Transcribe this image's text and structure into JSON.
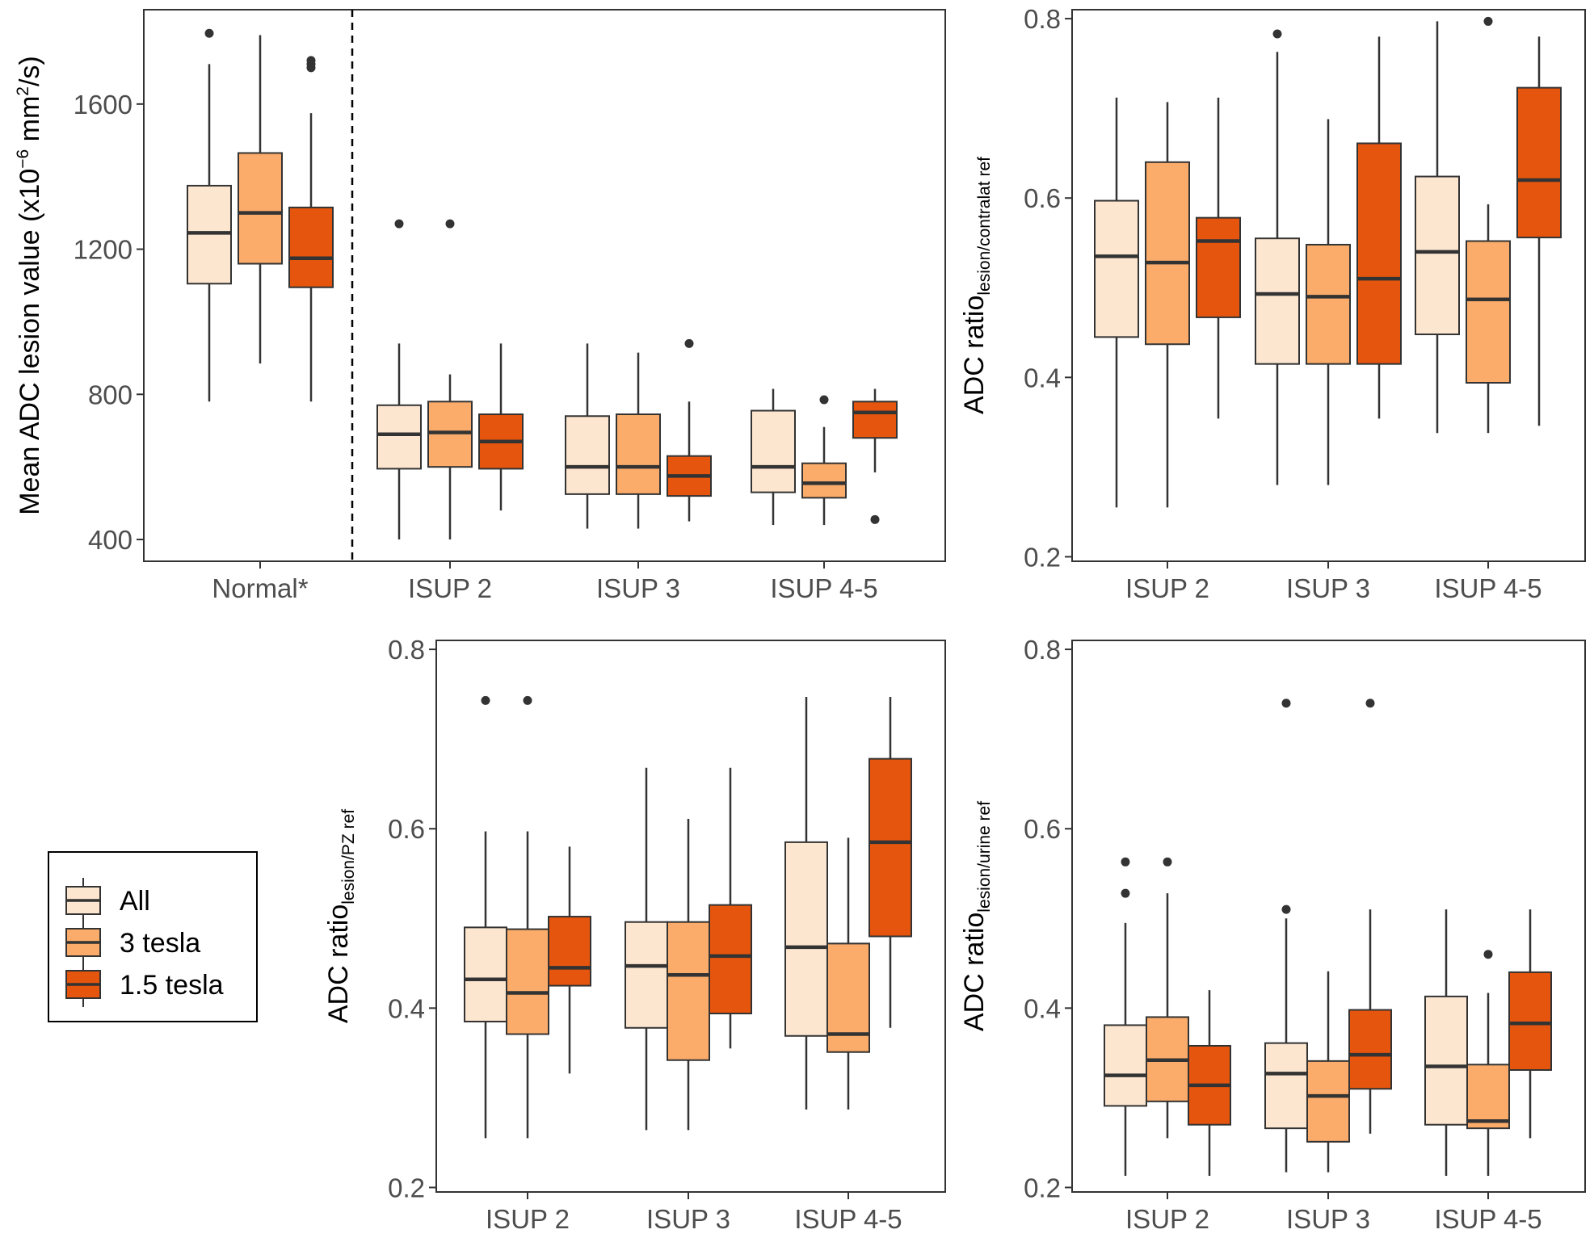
{
  "chart_data": [
    {
      "type": "boxplot",
      "id": "p1",
      "ylabel_main": "Mean ADC lesion value (x10",
      "ylabel_sup": "−6",
      "ylabel_mid": " mm",
      "ylabel_sup2": "2",
      "ylabel_end": "/s)",
      "ylim": [
        340,
        1860
      ],
      "yticks": [
        400,
        800,
        1200,
        1600
      ],
      "categories": [
        "Normal*",
        "ISUP 2",
        "ISUP 3",
        "ISUP 4-5"
      ],
      "series": [
        {
          "name": "All",
          "boxes": [
            {
              "min": 780,
              "q1": 1105,
              "median": 1245,
              "q3": 1375,
              "max": 1710,
              "outliers": [
                1795
              ]
            },
            {
              "min": 400,
              "q1": 595,
              "median": 690,
              "q3": 770,
              "max": 940,
              "outliers": [
                1270
              ]
            },
            {
              "min": 430,
              "q1": 525,
              "median": 600,
              "q3": 740,
              "max": 940,
              "outliers": []
            },
            {
              "min": 440,
              "q1": 530,
              "median": 600,
              "q3": 755,
              "max": 815,
              "outliers": []
            }
          ]
        },
        {
          "name": "3 tesla",
          "boxes": [
            {
              "min": 885,
              "q1": 1160,
              "median": 1300,
              "q3": 1465,
              "max": 1790,
              "outliers": []
            },
            {
              "min": 400,
              "q1": 600,
              "median": 695,
              "q3": 780,
              "max": 855,
              "outliers": [
                1270
              ]
            },
            {
              "min": 430,
              "q1": 525,
              "median": 600,
              "q3": 745,
              "max": 915,
              "outliers": []
            },
            {
              "min": 440,
              "q1": 515,
              "median": 555,
              "q3": 610,
              "max": 710,
              "outliers": [
                785
              ]
            }
          ]
        },
        {
          "name": "1.5 tesla",
          "boxes": [
            {
              "min": 780,
              "q1": 1095,
              "median": 1175,
              "q3": 1315,
              "max": 1575,
              "outliers": [
                1700,
                1710,
                1720
              ]
            },
            {
              "min": 480,
              "q1": 595,
              "median": 670,
              "q3": 745,
              "max": 940,
              "outliers": []
            },
            {
              "min": 450,
              "q1": 520,
              "median": 575,
              "q3": 630,
              "max": 780,
              "outliers": [
                940
              ]
            },
            {
              "min": 585,
              "q1": 680,
              "median": 750,
              "q3": 780,
              "max": 815,
              "outliers": [
                455
              ]
            }
          ]
        }
      ]
    },
    {
      "type": "boxplot",
      "id": "p2",
      "ylabel_main": "ADC ratio",
      "ylabel_sub": "lesion/contralat ref",
      "ylim": [
        0.195,
        0.81
      ],
      "yticks": [
        0.2,
        0.4,
        0.6,
        0.8
      ],
      "categories": [
        "ISUP 2",
        "ISUP 3",
        "ISUP 4-5"
      ],
      "series": [
        {
          "name": "All",
          "boxes": [
            {
              "min": 0.255,
              "q1": 0.445,
              "median": 0.535,
              "q3": 0.597,
              "max": 0.712,
              "outliers": []
            },
            {
              "min": 0.28,
              "q1": 0.415,
              "median": 0.493,
              "q3": 0.555,
              "max": 0.763,
              "outliers": [
                0.783
              ]
            },
            {
              "min": 0.338,
              "q1": 0.448,
              "median": 0.54,
              "q3": 0.624,
              "max": 0.797,
              "outliers": []
            }
          ]
        },
        {
          "name": "3 tesla",
          "boxes": [
            {
              "min": 0.255,
              "q1": 0.437,
              "median": 0.528,
              "q3": 0.64,
              "max": 0.707,
              "outliers": []
            },
            {
              "min": 0.28,
              "q1": 0.415,
              "median": 0.49,
              "q3": 0.548,
              "max": 0.688,
              "outliers": []
            },
            {
              "min": 0.338,
              "q1": 0.394,
              "median": 0.487,
              "q3": 0.552,
              "max": 0.593,
              "outliers": [
                0.797
              ]
            }
          ]
        },
        {
          "name": "1.5 tesla",
          "boxes": [
            {
              "min": 0.354,
              "q1": 0.467,
              "median": 0.552,
              "q3": 0.578,
              "max": 0.712,
              "outliers": []
            },
            {
              "min": 0.354,
              "q1": 0.415,
              "median": 0.51,
              "q3": 0.661,
              "max": 0.78,
              "outliers": []
            },
            {
              "min": 0.346,
              "q1": 0.556,
              "median": 0.62,
              "q3": 0.723,
              "max": 0.78,
              "outliers": []
            }
          ]
        }
      ]
    },
    {
      "type": "boxplot",
      "id": "p3",
      "ylabel_main": "ADC ratio",
      "ylabel_sub": "lesion/PZ ref",
      "ylim": [
        0.195,
        0.81
      ],
      "yticks": [
        0.2,
        0.4,
        0.6,
        0.8
      ],
      "categories": [
        "ISUP 2",
        "ISUP 3",
        "ISUP 4-5"
      ],
      "series": [
        {
          "name": "All",
          "boxes": [
            {
              "min": 0.255,
              "q1": 0.385,
              "median": 0.432,
              "q3": 0.49,
              "max": 0.597,
              "outliers": [
                0.743
              ]
            },
            {
              "min": 0.264,
              "q1": 0.378,
              "median": 0.447,
              "q3": 0.496,
              "max": 0.668,
              "outliers": []
            },
            {
              "min": 0.287,
              "q1": 0.369,
              "median": 0.468,
              "q3": 0.585,
              "max": 0.747,
              "outliers": []
            }
          ]
        },
        {
          "name": "3 tesla",
          "boxes": [
            {
              "min": 0.255,
              "q1": 0.371,
              "median": 0.417,
              "q3": 0.488,
              "max": 0.597,
              "outliers": [
                0.743
              ]
            },
            {
              "min": 0.264,
              "q1": 0.342,
              "median": 0.437,
              "q3": 0.496,
              "max": 0.611,
              "outliers": []
            },
            {
              "min": 0.287,
              "q1": 0.351,
              "median": 0.371,
              "q3": 0.472,
              "max": 0.59,
              "outliers": []
            }
          ]
        },
        {
          "name": "1.5 tesla",
          "boxes": [
            {
              "min": 0.327,
              "q1": 0.425,
              "median": 0.445,
              "q3": 0.502,
              "max": 0.58,
              "outliers": []
            },
            {
              "min": 0.355,
              "q1": 0.394,
              "median": 0.458,
              "q3": 0.515,
              "max": 0.668,
              "outliers": []
            },
            {
              "min": 0.378,
              "q1": 0.48,
              "median": 0.585,
              "q3": 0.678,
              "max": 0.747,
              "outliers": []
            }
          ]
        }
      ]
    },
    {
      "type": "boxplot",
      "id": "p4",
      "ylabel_main": "ADC ratio",
      "ylabel_sub": "lesion/urine ref",
      "ylim": [
        0.195,
        0.81
      ],
      "yticks": [
        0.2,
        0.4,
        0.6,
        0.8
      ],
      "categories": [
        "ISUP 2",
        "ISUP 3",
        "ISUP 4-5"
      ],
      "series": [
        {
          "name": "All",
          "boxes": [
            {
              "min": 0.213,
              "q1": 0.291,
              "median": 0.325,
              "q3": 0.381,
              "max": 0.495,
              "outliers": [
                0.528,
                0.563
              ]
            },
            {
              "min": 0.217,
              "q1": 0.266,
              "median": 0.327,
              "q3": 0.361,
              "max": 0.5,
              "outliers": [
                0.51,
                0.74
              ]
            },
            {
              "min": 0.213,
              "q1": 0.27,
              "median": 0.335,
              "q3": 0.413,
              "max": 0.51,
              "outliers": []
            }
          ]
        },
        {
          "name": "3 tesla",
          "boxes": [
            {
              "min": 0.255,
              "q1": 0.296,
              "median": 0.342,
              "q3": 0.39,
              "max": 0.528,
              "outliers": [
                0.563
              ]
            },
            {
              "min": 0.217,
              "q1": 0.251,
              "median": 0.302,
              "q3": 0.341,
              "max": 0.441,
              "outliers": []
            },
            {
              "min": 0.213,
              "q1": 0.266,
              "median": 0.274,
              "q3": 0.337,
              "max": 0.417,
              "outliers": [
                0.46
              ]
            }
          ]
        },
        {
          "name": "1.5 tesla",
          "boxes": [
            {
              "min": 0.213,
              "q1": 0.27,
              "median": 0.314,
              "q3": 0.358,
              "max": 0.42,
              "outliers": []
            },
            {
              "min": 0.26,
              "q1": 0.31,
              "median": 0.348,
              "q3": 0.398,
              "max": 0.51,
              "outliers": [
                0.74
              ]
            },
            {
              "min": 0.255,
              "q1": 0.331,
              "median": 0.383,
              "q3": 0.44,
              "max": 0.51,
              "outliers": []
            }
          ]
        }
      ]
    }
  ],
  "legend": {
    "items": [
      {
        "label": "All",
        "color": "#FDE6CF"
      },
      {
        "label": "3 tesla",
        "color": "#FBAC6A"
      },
      {
        "label": "1.5 tesla",
        "color": "#E6550D"
      }
    ]
  },
  "colors": {
    "box_stroke": "#333333",
    "median": "#333333",
    "outlier": "#333333",
    "divider": "#000000"
  }
}
